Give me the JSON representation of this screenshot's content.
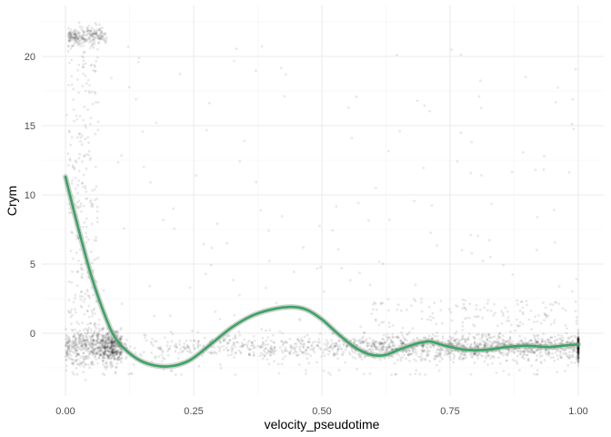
{
  "chart_data": {
    "type": "scatter",
    "title": "",
    "xlabel": "velocity_pseudotime",
    "ylabel": "Crym",
    "xlim": [
      -0.05,
      1.03
    ],
    "ylim": [
      -4.5,
      23.2
    ],
    "x_ticks": [
      0.0,
      0.25,
      0.5,
      0.75,
      1.0
    ],
    "x_tick_labels": [
      "0.00",
      "0.25",
      "0.50",
      "0.75",
      "1.00"
    ],
    "y_ticks": [
      0,
      5,
      10,
      15,
      20
    ],
    "y_tick_labels": [
      "0",
      "5",
      "10",
      "15",
      "20"
    ],
    "grid": true,
    "legend": "none",
    "colors": {
      "points": "#000000",
      "smooth": "#3aa564",
      "band": "#999999",
      "grid": "#ebebeb"
    },
    "series": [
      {
        "kind": "points",
        "description_clusters": [
          {
            "x_range": [
              0.0,
              0.08
            ],
            "y_center": 21.5,
            "density": "high"
          },
          {
            "x_range": [
              0.0,
              1.0
            ],
            "y_center": -1.0,
            "density": "high"
          },
          {
            "x_range": [
              0.0,
              0.06
            ],
            "y_range": [
              0,
              22
            ],
            "density": "medium"
          }
        ]
      },
      {
        "kind": "smooth",
        "x": [
          0.0,
          0.02,
          0.05,
          0.08,
          0.1,
          0.13,
          0.16,
          0.2,
          0.24,
          0.28,
          0.32,
          0.36,
          0.4,
          0.44,
          0.47,
          0.5,
          0.53,
          0.56,
          0.59,
          0.62,
          0.65,
          0.68,
          0.71,
          0.74,
          0.78,
          0.82,
          0.86,
          0.9,
          0.94,
          0.97,
          1.0
        ],
        "y": [
          11.3,
          8.3,
          4.2,
          1.0,
          -0.5,
          -1.6,
          -2.2,
          -2.4,
          -2.0,
          -0.9,
          0.3,
          1.2,
          1.7,
          1.9,
          1.7,
          1.0,
          0.0,
          -0.9,
          -1.5,
          -1.6,
          -1.2,
          -0.8,
          -0.6,
          -0.9,
          -1.2,
          -1.2,
          -1.0,
          -0.9,
          -1.0,
          -0.9,
          -0.8
        ]
      }
    ]
  }
}
